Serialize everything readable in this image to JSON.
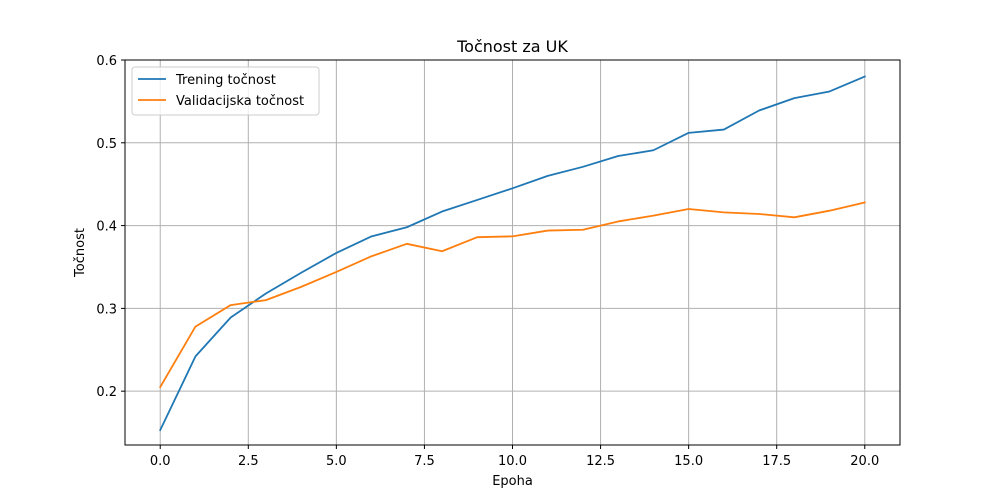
{
  "chart_data": {
    "type": "line",
    "title": "Točnost za UK",
    "xlabel": "Epoha",
    "ylabel": "Točnost",
    "xlim": [
      -1,
      21
    ],
    "ylim": [
      0.135,
      0.6
    ],
    "xticks": [
      0.0,
      2.5,
      5.0,
      7.5,
      10.0,
      12.5,
      15.0,
      17.5,
      20.0
    ],
    "xtick_labels": [
      "0.0",
      "2.5",
      "5.0",
      "7.5",
      "10.0",
      "12.5",
      "15.0",
      "17.5",
      "20.0"
    ],
    "yticks": [
      0.2,
      0.3,
      0.4,
      0.5,
      0.6
    ],
    "ytick_labels": [
      "0.2",
      "0.3",
      "0.4",
      "0.5",
      "0.6"
    ],
    "grid": true,
    "legend_position": "top-left",
    "x": [
      0,
      1,
      2,
      3,
      4,
      5,
      6,
      7,
      8,
      9,
      10,
      11,
      12,
      13,
      14,
      15,
      16,
      17,
      18,
      19,
      20
    ],
    "series": [
      {
        "name": "Trening točnost",
        "color": "#1f77b4",
        "values": [
          0.153,
          0.242,
          0.289,
          0.318,
          0.343,
          0.367,
          0.387,
          0.398,
          0.417,
          0.431,
          0.445,
          0.46,
          0.471,
          0.484,
          0.491,
          0.512,
          0.516,
          0.539,
          0.554,
          0.562,
          0.58
        ]
      },
      {
        "name": "Validacijska točnost",
        "color": "#ff7f0e",
        "values": [
          0.205,
          0.278,
          0.304,
          0.31,
          0.326,
          0.344,
          0.363,
          0.378,
          0.369,
          0.386,
          0.387,
          0.394,
          0.395,
          0.405,
          0.412,
          0.42,
          0.416,
          0.414,
          0.41,
          0.418,
          0.428
        ]
      }
    ]
  }
}
